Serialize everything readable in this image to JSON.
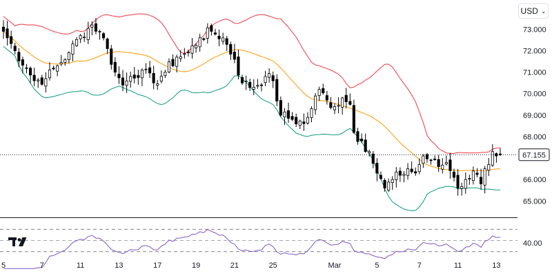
{
  "toolbar": {
    "currency": "USD"
  },
  "logo_name": "tradingview-logo",
  "chart_data": {
    "type": "candlestick",
    "instrument_quote": "USD",
    "price_axis": {
      "ticks": [
        "73.000",
        "72.000",
        "71.000",
        "70.000",
        "69.000",
        "68.000",
        "67.000",
        "66.000",
        "65.000"
      ],
      "range": [
        64.4,
        74.2
      ]
    },
    "current_price": {
      "value": 67.155,
      "label": "67.155"
    },
    "x_axis_labels": [
      {
        "i": 0,
        "label": "5"
      },
      {
        "i": 10,
        "label": "7"
      },
      {
        "i": 20,
        "label": "11"
      },
      {
        "i": 30,
        "label": "13"
      },
      {
        "i": 40,
        "label": "17"
      },
      {
        "i": 50,
        "label": "19"
      },
      {
        "i": 60,
        "label": "21"
      },
      {
        "i": 70,
        "label": "25"
      },
      {
        "i": 86,
        "label": "Mar"
      },
      {
        "i": 97,
        "label": "5"
      },
      {
        "i": 108,
        "label": "7"
      },
      {
        "i": 118,
        "label": "11"
      },
      {
        "i": 128,
        "label": "13"
      }
    ],
    "close_anchors": [
      [
        0,
        72.9
      ],
      [
        3,
        72.0
      ],
      [
        6,
        71.2
      ],
      [
        8,
        70.6
      ],
      [
        11,
        70.7
      ],
      [
        14,
        71.3
      ],
      [
        17,
        71.9
      ],
      [
        20,
        72.7
      ],
      [
        23,
        73.2
      ],
      [
        25,
        72.9
      ],
      [
        27,
        72.1
      ],
      [
        29,
        71.0
      ],
      [
        31,
        70.4
      ],
      [
        33,
        70.8
      ],
      [
        36,
        71.1
      ],
      [
        39,
        70.5
      ],
      [
        42,
        71.0
      ],
      [
        45,
        71.7
      ],
      [
        48,
        71.9
      ],
      [
        51,
        72.6
      ],
      [
        54,
        72.9
      ],
      [
        57,
        72.6
      ],
      [
        60,
        71.6
      ],
      [
        62,
        70.5
      ],
      [
        65,
        70.3
      ],
      [
        68,
        70.8
      ],
      [
        70,
        70.6
      ],
      [
        72,
        69.0
      ],
      [
        75,
        68.8
      ],
      [
        78,
        68.6
      ],
      [
        80,
        69.3
      ],
      [
        82,
        70.2
      ],
      [
        84,
        69.7
      ],
      [
        86,
        69.4
      ],
      [
        88,
        69.8
      ],
      [
        90,
        69.5
      ],
      [
        91,
        68.2
      ],
      [
        93,
        67.8
      ],
      [
        95,
        67.3
      ],
      [
        97,
        66.3
      ],
      [
        99,
        65.6
      ],
      [
        101,
        66.0
      ],
      [
        103,
        66.2
      ],
      [
        105,
        66.5
      ],
      [
        107,
        66.3
      ],
      [
        109,
        67.1
      ],
      [
        111,
        66.9
      ],
      [
        113,
        66.6
      ],
      [
        115,
        66.8
      ],
      [
        117,
        66.1
      ],
      [
        118,
        65.6
      ],
      [
        120,
        66.0
      ],
      [
        122,
        66.4
      ],
      [
        124,
        65.8
      ],
      [
        125,
        66.5
      ],
      [
        127,
        67.3
      ],
      [
        129,
        67.15
      ]
    ],
    "bands_period": 20,
    "rsi": {
      "period": 14,
      "label": "40.00",
      "levels": [
        70,
        50,
        30
      ]
    },
    "colors": {
      "up": "#ffffff",
      "down": "#000000",
      "wick": "#000000",
      "upper_band": "#f23645",
      "basis": "#ff9800",
      "lower_band": "#089981",
      "rsi_line": "#7e57c2",
      "grid_text": "#131722",
      "price_line": "#131722"
    }
  }
}
